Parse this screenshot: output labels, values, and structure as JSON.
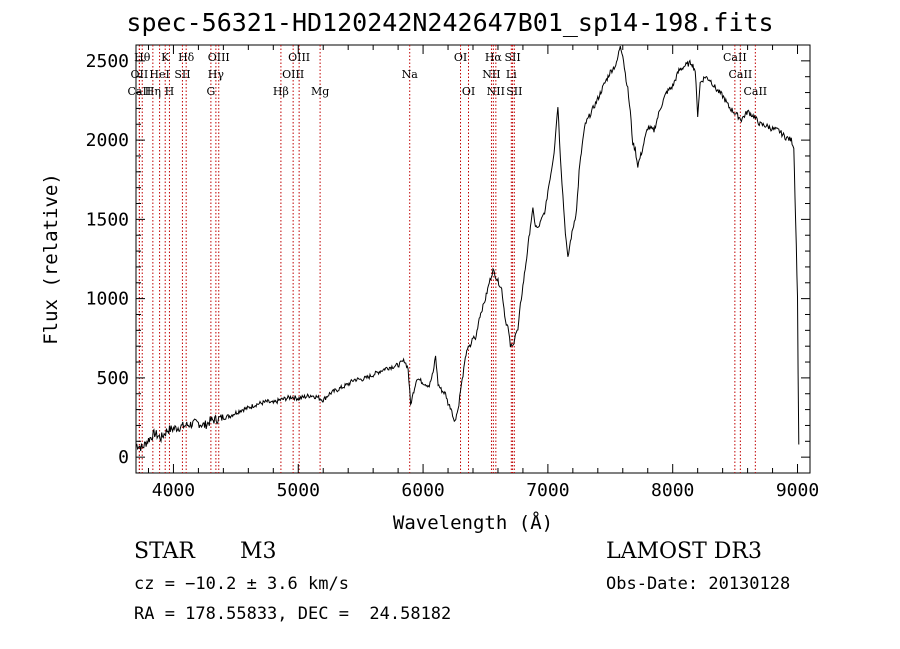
{
  "title": "spec-56321-HD120242N242647B01_sp14-198.fits",
  "info": {
    "class": "STAR",
    "subclass": "M3",
    "survey": "LAMOST DR3",
    "cz": "cz = −10.2 ± 3.6 km/s",
    "obs_date": "Obs-Date: 20130128",
    "coords": "RA = 178.55833, DEC =  24.58182"
  },
  "colors": {
    "axis": "#000000",
    "spectrum": "#000000",
    "lines": "#c00000"
  },
  "chart_data": {
    "type": "line",
    "xlabel": "Wavelength (Å)",
    "ylabel": "Flux (relative)",
    "xlim": [
      3700,
      9100
    ],
    "ylim": [
      -100,
      2600
    ],
    "xticks": [
      4000,
      5000,
      6000,
      7000,
      8000,
      9000
    ],
    "yticks": [
      0,
      500,
      1000,
      1500,
      2000,
      2500
    ],
    "grid": false,
    "series": [
      {
        "points": [
          [
            3700,
            80
          ],
          [
            3750,
            60
          ],
          [
            3800,
            110
          ],
          [
            3850,
            150
          ],
          [
            3900,
            120
          ],
          [
            3950,
            170
          ],
          [
            4000,
            180
          ],
          [
            4050,
            190
          ],
          [
            4100,
            200
          ],
          [
            4150,
            210
          ],
          [
            4200,
            215
          ],
          [
            4250,
            200
          ],
          [
            4300,
            230
          ],
          [
            4350,
            240
          ],
          [
            4400,
            250
          ],
          [
            4450,
            260
          ],
          [
            4500,
            280
          ],
          [
            4550,
            300
          ],
          [
            4600,
            310
          ],
          [
            4650,
            330
          ],
          [
            4700,
            340
          ],
          [
            4750,
            350
          ],
          [
            4800,
            340
          ],
          [
            4850,
            360
          ],
          [
            4900,
            370
          ],
          [
            4950,
            380
          ],
          [
            5000,
            370
          ],
          [
            5050,
            380
          ],
          [
            5100,
            390
          ],
          [
            5150,
            380
          ],
          [
            5200,
            360
          ],
          [
            5250,
            400
          ],
          [
            5300,
            420
          ],
          [
            5350,
            440
          ],
          [
            5400,
            460
          ],
          [
            5450,
            490
          ],
          [
            5500,
            490
          ],
          [
            5550,
            500
          ],
          [
            5600,
            520
          ],
          [
            5650,
            540
          ],
          [
            5700,
            560
          ],
          [
            5750,
            570
          ],
          [
            5800,
            580
          ],
          [
            5850,
            610
          ],
          [
            5880,
            560
          ],
          [
            5900,
            330
          ],
          [
            5920,
            400
          ],
          [
            5950,
            500
          ],
          [
            6000,
            470
          ],
          [
            6050,
            450
          ],
          [
            6080,
            530
          ],
          [
            6100,
            640
          ],
          [
            6120,
            460
          ],
          [
            6150,
            420
          ],
          [
            6180,
            400
          ],
          [
            6200,
            340
          ],
          [
            6230,
            300
          ],
          [
            6250,
            220
          ],
          [
            6280,
            300
          ],
          [
            6300,
            420
          ],
          [
            6320,
            520
          ],
          [
            6350,
            680
          ],
          [
            6380,
            700
          ],
          [
            6400,
            760
          ],
          [
            6420,
            740
          ],
          [
            6450,
            880
          ],
          [
            6480,
            950
          ],
          [
            6500,
            1000
          ],
          [
            6530,
            1100
          ],
          [
            6560,
            1180
          ],
          [
            6600,
            1110
          ],
          [
            6630,
            1060
          ],
          [
            6660,
            860
          ],
          [
            6680,
            820
          ],
          [
            6700,
            700
          ],
          [
            6720,
            700
          ],
          [
            6740,
            780
          ],
          [
            6760,
            800
          ],
          [
            6780,
            960
          ],
          [
            6800,
            1080
          ],
          [
            6830,
            1260
          ],
          [
            6860,
            1460
          ],
          [
            6880,
            1560
          ],
          [
            6900,
            1460
          ],
          [
            6920,
            1440
          ],
          [
            6950,
            1500
          ],
          [
            6980,
            1560
          ],
          [
            7000,
            1680
          ],
          [
            7030,
            1820
          ],
          [
            7050,
            1930
          ],
          [
            7080,
            2220
          ],
          [
            7100,
            1900
          ],
          [
            7120,
            1650
          ],
          [
            7140,
            1420
          ],
          [
            7160,
            1250
          ],
          [
            7180,
            1360
          ],
          [
            7200,
            1440
          ],
          [
            7230,
            1560
          ],
          [
            7250,
            1800
          ],
          [
            7280,
            2000
          ],
          [
            7300,
            2100
          ],
          [
            7350,
            2180
          ],
          [
            7400,
            2260
          ],
          [
            7450,
            2350
          ],
          [
            7500,
            2430
          ],
          [
            7550,
            2480
          ],
          [
            7580,
            2600
          ],
          [
            7600,
            2540
          ],
          [
            7620,
            2420
          ],
          [
            7640,
            2320
          ],
          [
            7660,
            2180
          ],
          [
            7680,
            1980
          ],
          [
            7700,
            1940
          ],
          [
            7720,
            1840
          ],
          [
            7750,
            1920
          ],
          [
            7800,
            2080
          ],
          [
            7850,
            2060
          ],
          [
            7900,
            2200
          ],
          [
            7950,
            2300
          ],
          [
            8000,
            2340
          ],
          [
            8050,
            2440
          ],
          [
            8100,
            2470
          ],
          [
            8150,
            2490
          ],
          [
            8180,
            2440
          ],
          [
            8200,
            2160
          ],
          [
            8220,
            2360
          ],
          [
            8260,
            2400
          ],
          [
            8300,
            2380
          ],
          [
            8350,
            2320
          ],
          [
            8400,
            2280
          ],
          [
            8450,
            2210
          ],
          [
            8500,
            2170
          ],
          [
            8550,
            2130
          ],
          [
            8600,
            2180
          ],
          [
            8650,
            2150
          ],
          [
            8700,
            2100
          ],
          [
            8750,
            2090
          ],
          [
            8800,
            2070
          ],
          [
            8850,
            2060
          ],
          [
            8900,
            2020
          ],
          [
            8950,
            2000
          ],
          [
            8970,
            1960
          ],
          [
            8985,
            1500
          ],
          [
            9000,
            1000
          ],
          [
            9010,
            80
          ]
        ]
      }
    ],
    "lines": [
      {
        "w": 3750,
        "label": "Hθ",
        "row": 0
      },
      {
        "w": 3727,
        "label": "OII",
        "row": 1
      },
      {
        "w": 3727,
        "label": "CaII",
        "row": 2
      },
      {
        "w": 3835,
        "label": "Hη",
        "row": 2
      },
      {
        "w": 3889,
        "label": "HeI",
        "row": 1
      },
      {
        "w": 3934,
        "label": "K",
        "row": 0
      },
      {
        "w": 3968,
        "label": "H",
        "row": 2
      },
      {
        "w": 4072,
        "label": "SII",
        "row": 1
      },
      {
        "w": 4102,
        "label": "Hδ",
        "row": 0
      },
      {
        "w": 4300,
        "label": "G",
        "row": 2
      },
      {
        "w": 4340,
        "label": "Hγ",
        "row": 1
      },
      {
        "w": 4363,
        "label": "OIII",
        "row": 0
      },
      {
        "w": 4861,
        "label": "Hβ",
        "row": 2
      },
      {
        "w": 4959,
        "label": "OIII",
        "row": 1
      },
      {
        "w": 5007,
        "label": "OIII",
        "row": 0
      },
      {
        "w": 5175,
        "label": "Mg",
        "row": 2
      },
      {
        "w": 5893,
        "label": "Na",
        "row": 1
      },
      {
        "w": 6300,
        "label": "OI",
        "row": 0
      },
      {
        "w": 6364,
        "label": "OI",
        "row": 2
      },
      {
        "w": 6548,
        "label": "NII",
        "row": 1
      },
      {
        "w": 6563,
        "label": "Hα",
        "row": 0
      },
      {
        "w": 6583,
        "label": "NII",
        "row": 2
      },
      {
        "w": 6707,
        "label": "Li",
        "row": 1
      },
      {
        "w": 6717,
        "label": "SII",
        "row": 0
      },
      {
        "w": 6731,
        "label": "SII",
        "row": 2
      },
      {
        "w": 8498,
        "label": "CaII",
        "row": 0
      },
      {
        "w": 8542,
        "label": "CaII",
        "row": 1
      },
      {
        "w": 8662,
        "label": "CaII",
        "row": 2
      }
    ]
  }
}
